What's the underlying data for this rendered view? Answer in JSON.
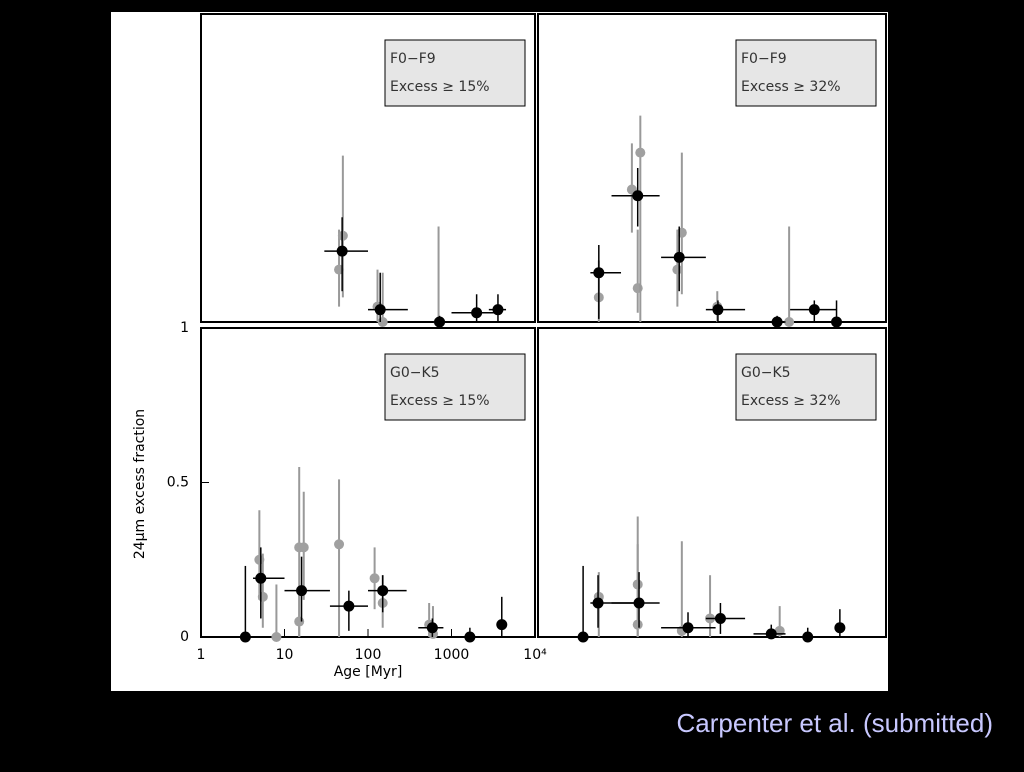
{
  "chart_data": [
    {
      "type": "scatter",
      "box_lines": [
        "F0−F9",
        "Excess ≥ 15%"
      ],
      "xlim": [
        1,
        10000
      ],
      "ylim": [
        0,
        1
      ],
      "log_x": true,
      "series": [
        {
          "color": "#a0a0a0",
          "x": [
            45,
            50,
            130,
            150,
            700
          ],
          "values": [
            0.17,
            0.28,
            0.05,
            0.0,
            0.0
          ],
          "y_low": [
            0.05,
            0.08,
            0.0,
            0.0,
            0.0
          ],
          "y_high": [
            0.3,
            0.54,
            0.17,
            0.16,
            0.31
          ]
        },
        {
          "color": "#000000",
          "x": [
            49,
            140,
            720,
            2000,
            3600
          ],
          "values": [
            0.23,
            0.04,
            0.0,
            0.03,
            0.04
          ],
          "y_low": [
            0.1,
            0.0,
            0.0,
            0.0,
            0.0
          ],
          "y_high": [
            0.34,
            0.16,
            0.02,
            0.09,
            0.09
          ],
          "x_low": [
            30,
            100,
            300,
            1000,
            2800
          ],
          "x_high": [
            100,
            300,
            1000,
            3300,
            4500
          ]
        }
      ]
    },
    {
      "type": "scatter",
      "box_lines": [
        "F0−F9",
        "Excess ≥ 32%"
      ],
      "xlim": [
        1,
        10000
      ],
      "ylim": [
        0,
        1
      ],
      "log_x": true,
      "series": [
        {
          "color": "#a0a0a0",
          "x": [
            5,
            12,
            14,
            15,
            40,
            45,
            115,
            770
          ],
          "values": [
            0.08,
            0.43,
            0.11,
            0.55,
            0.17,
            0.29,
            0.05,
            0.0
          ],
          "y_low": [
            0.0,
            0.29,
            0.03,
            0.0,
            0.05,
            0.09,
            0.0,
            0.0
          ],
          "y_high": [
            0.2,
            0.58,
            0.3,
            0.67,
            0.3,
            0.55,
            0.1,
            0.31
          ]
        },
        {
          "color": "#000000",
          "x": [
            5,
            14,
            42,
            117,
            560,
            1500,
            2700
          ],
          "values": [
            0.16,
            0.41,
            0.21,
            0.04,
            0.0,
            0.04,
            0.0
          ],
          "y_low": [
            0.01,
            0.31,
            0.1,
            0.0,
            0.0,
            0.0,
            0.0
          ],
          "y_high": [
            0.25,
            0.5,
            0.31,
            0.07,
            0.02,
            0.07,
            0.07
          ],
          "x_low": [
            4,
            7,
            26,
            85,
            400,
            790,
            2300
          ],
          "x_high": [
            9,
            25,
            85,
            240,
            700,
            2700,
            3200
          ]
        }
      ]
    },
    {
      "type": "scatter",
      "box_lines": [
        "G0−K5",
        "Excess ≥ 15%"
      ],
      "xlim": [
        1,
        10000
      ],
      "ylim": [
        0,
        1
      ],
      "log_x": true,
      "xticks": [
        1,
        10,
        100,
        1000,
        {
          "value": 10000,
          "label": "10⁴"
        }
      ],
      "yticks": [
        0,
        0.5,
        1
      ],
      "xlabel": "Age  [Myr]",
      "ylabel": "24μm excess fraction",
      "series": [
        {
          "color": "#a0a0a0",
          "x": [
            5,
            5.5,
            8,
            15,
            17,
            15,
            45,
            120,
            150,
            540,
            600
          ],
          "values": [
            0.25,
            0.13,
            0.0,
            0.29,
            0.29,
            0.05,
            0.3,
            0.19,
            0.11,
            0.04,
            0.01
          ],
          "y_low": [
            0.12,
            0.03,
            0.0,
            0.0,
            0.12,
            0.0,
            0.0,
            0.09,
            0.03,
            0.0,
            0.0
          ],
          "y_high": [
            0.41,
            0.27,
            0.17,
            0.55,
            0.47,
            0.16,
            0.51,
            0.29,
            0.2,
            0.11,
            0.1
          ]
        },
        {
          "color": "#000000",
          "x": [
            3.4,
            5.2,
            16,
            59,
            150,
            590,
            1660,
            4000
          ],
          "values": [
            0.0,
            0.19,
            0.15,
            0.1,
            0.15,
            0.03,
            0.0,
            0.04
          ],
          "y_low": [
            0.0,
            0.06,
            0.05,
            0.02,
            0.08,
            0.0,
            0.0,
            0.0
          ],
          "y_high": [
            0.23,
            0.29,
            0.26,
            0.15,
            0.2,
            0.06,
            0.03,
            0.13
          ],
          "x_low": [
            3,
            4.2,
            10,
            35,
            100,
            400,
            1300,
            3600
          ],
          "x_high": [
            3.8,
            10,
            35,
            100,
            290,
            800,
            2000,
            4400
          ]
        }
      ]
    },
    {
      "type": "scatter",
      "box_lines": [
        "G0−K5",
        "Excess ≥ 32%"
      ],
      "xlim": [
        1,
        10000
      ],
      "ylim": [
        0,
        1
      ],
      "log_x": true,
      "series": [
        {
          "color": "#a0a0a0",
          "x": [
            5,
            14,
            14,
            45,
            95,
            600
          ],
          "values": [
            0.13,
            0.17,
            0.04,
            0.02,
            0.06,
            0.02
          ],
          "y_low": [
            0.0,
            0.0,
            0.0,
            0.0,
            0.0,
            0.0
          ],
          "y_high": [
            0.21,
            0.3,
            0.39,
            0.31,
            0.2,
            0.1
          ]
        },
        {
          "color": "#000000",
          "x": [
            3.3,
            4.9,
            14.5,
            53,
            125,
            480,
            1260,
            2950
          ],
          "values": [
            0.0,
            0.11,
            0.11,
            0.03,
            0.06,
            0.01,
            0.0,
            0.03
          ],
          "y_low": [
            0.0,
            0.03,
            0.03,
            0.0,
            0.01,
            0.0,
            0.0,
            0.0
          ],
          "y_high": [
            0.23,
            0.2,
            0.21,
            0.08,
            0.11,
            0.04,
            0.03,
            0.09
          ],
          "x_low": [
            3,
            4,
            7,
            26,
            85,
            300,
            1000,
            2600
          ],
          "x_high": [
            3.6,
            13,
            25,
            110,
            240,
            700,
            1500,
            3300
          ]
        }
      ]
    }
  ],
  "caption": "Carpenter et al. (submitted)"
}
